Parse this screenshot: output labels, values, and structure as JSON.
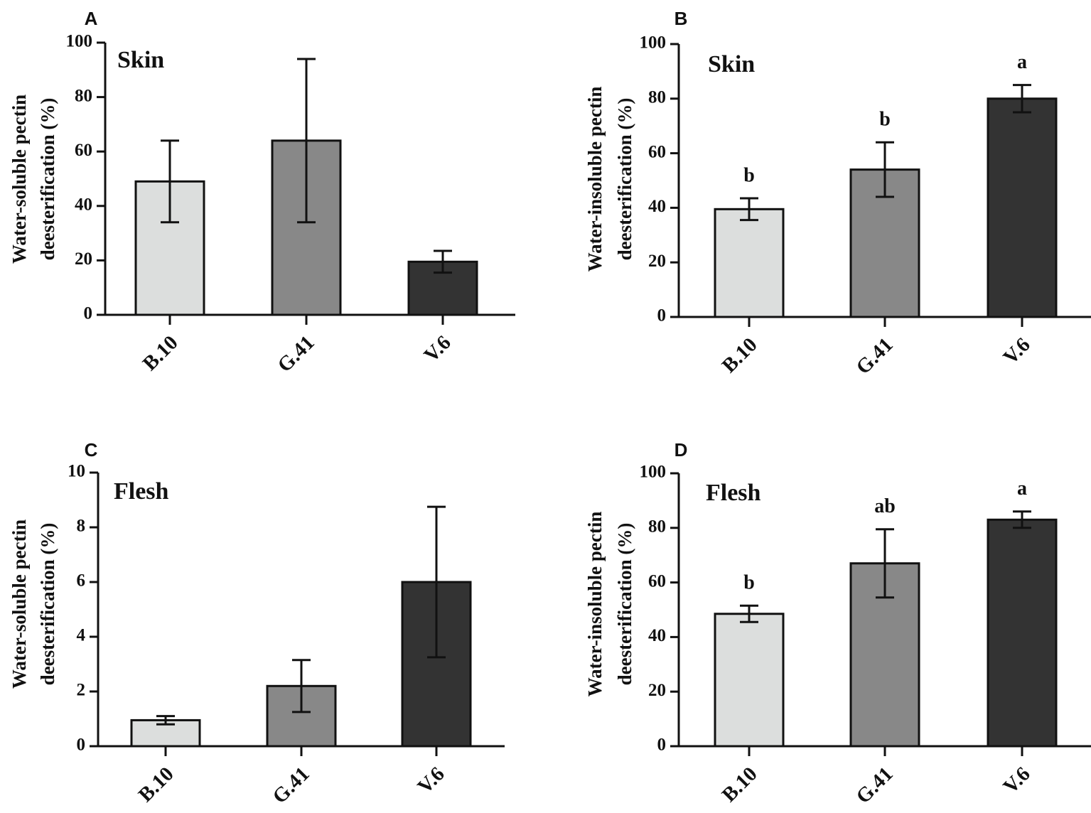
{
  "chart_data": [
    {
      "panel": "A",
      "type": "bar",
      "tissue": "Skin",
      "ylabel_lines": [
        "Water-soluble pectin",
        "deesterification (%)"
      ],
      "ylim": [
        0,
        100
      ],
      "yticks": [
        "0",
        "20",
        "40",
        "60",
        "80",
        "100"
      ],
      "categories": [
        "B.10",
        "G.41",
        "V.6"
      ],
      "values": [
        49,
        64,
        19.5
      ],
      "errors": [
        15,
        30,
        4
      ],
      "significance": [],
      "colors": [
        "#dcdedd",
        "#888888",
        "#333333"
      ]
    },
    {
      "panel": "B",
      "type": "bar",
      "tissue": "Skin",
      "ylabel_lines": [
        "Water-insoluble pectin",
        "deesterification (%)"
      ],
      "ylim": [
        0,
        100
      ],
      "yticks": [
        "0",
        "20",
        "40",
        "60",
        "80",
        "100"
      ],
      "categories": [
        "B.10",
        "G.41",
        "V.6"
      ],
      "values": [
        39.5,
        54,
        80
      ],
      "errors": [
        4,
        10,
        5
      ],
      "significance": [
        "b",
        "b",
        "a"
      ],
      "colors": [
        "#dcdedd",
        "#888888",
        "#333333"
      ]
    },
    {
      "panel": "C",
      "type": "bar",
      "tissue": "Flesh",
      "ylabel_lines": [
        "Water-soluble pectin",
        "deesterification (%)"
      ],
      "ylim": [
        0,
        10
      ],
      "yticks": [
        "0",
        "2",
        "4",
        "6",
        "8",
        "10"
      ],
      "categories": [
        "B.10",
        "G.41",
        "V.6"
      ],
      "values": [
        0.95,
        2.2,
        6.0
      ],
      "errors": [
        0.15,
        0.95,
        2.75
      ],
      "significance": [],
      "colors": [
        "#dcdedd",
        "#888888",
        "#333333"
      ]
    },
    {
      "panel": "D",
      "type": "bar",
      "tissue": "Flesh",
      "ylabel_lines": [
        "Water-insoluble pectin",
        "deesterification (%)"
      ],
      "ylim": [
        0,
        100
      ],
      "yticks": [
        "0",
        "20",
        "40",
        "60",
        "80",
        "100"
      ],
      "categories": [
        "B.10",
        "G.41",
        "V.6"
      ],
      "values": [
        48.5,
        67,
        83
      ],
      "errors": [
        3,
        12.5,
        3
      ],
      "significance": [
        "b",
        "ab",
        "a"
      ],
      "colors": [
        "#dcdedd",
        "#888888",
        "#333333"
      ]
    }
  ]
}
